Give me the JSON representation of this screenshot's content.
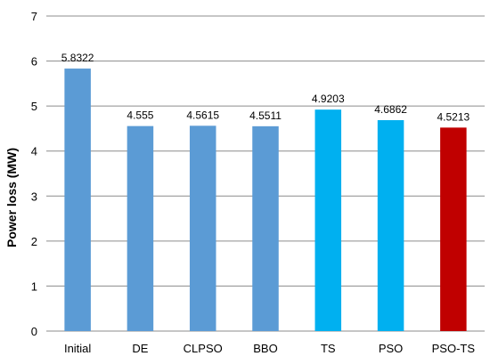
{
  "chart_data": {
    "type": "bar",
    "title": "",
    "xlabel": "",
    "ylabel": "Power loss (MW)",
    "ylim": [
      0,
      7
    ],
    "yticks": [
      0,
      1,
      2,
      3,
      4,
      5,
      6,
      7
    ],
    "grid": true,
    "legend": "none",
    "categories": [
      "Initial",
      "DE",
      "CLPSO",
      "BBO",
      "TS",
      "PSO",
      "PSO-TS"
    ],
    "values": [
      5.8322,
      4.555,
      4.5615,
      4.5511,
      4.9203,
      4.6862,
      4.5213
    ],
    "value_labels": [
      "5.8322",
      "4.555",
      "4.5615",
      "4.5511",
      "4.9203",
      "4.6862",
      "4.5213"
    ],
    "bar_colors": [
      "#5b9bd5",
      "#5b9bd5",
      "#5b9bd5",
      "#5b9bd5",
      "#00b0f0",
      "#00b0f0",
      "#c00000"
    ],
    "gridline_color": "#8c8c8c"
  }
}
